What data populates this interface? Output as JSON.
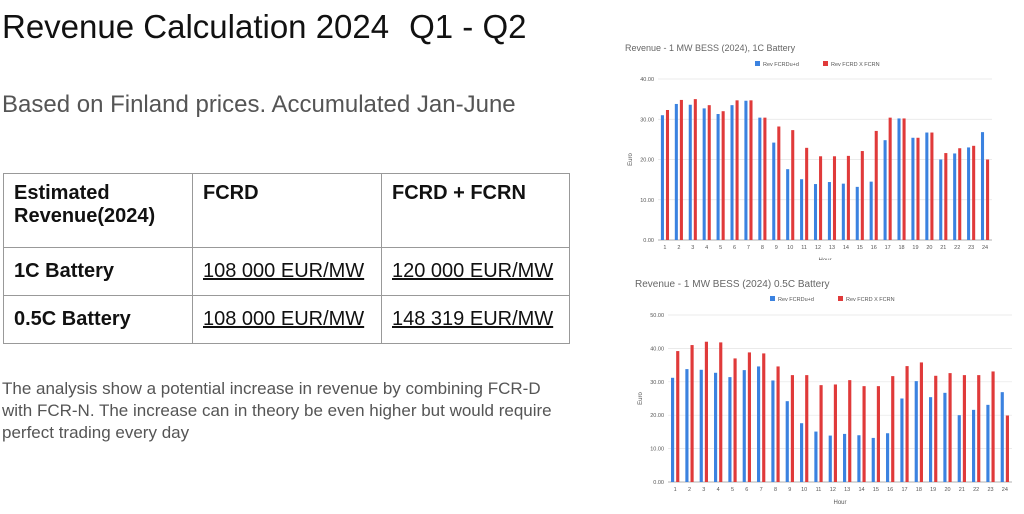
{
  "title": "Revenue Calculation 2024",
  "title_period": "Q1 - Q2",
  "subtitle": "Based on Finland prices. Accumulated Jan-June",
  "table": {
    "headers": [
      "Estimated Revenue(2024)",
      "FCRD",
      "FCRD + FCRN"
    ],
    "rows": [
      [
        "1C Battery",
        "108 000 EUR/MW",
        "120 000 EUR/MW"
      ],
      [
        "0.5C Battery",
        "108 000 EUR/MW",
        "148 319 EUR/MW"
      ]
    ]
  },
  "paragraph": "The analysis show a potential increase in revenue by combining FCR-D with FCR-N. The increase can in theory be even higher but would require perfect trading every day",
  "chart_data": [
    {
      "type": "bar",
      "title": "Revenue - 1 MW BESS (2024), 1C Battery",
      "xlabel": "Hour",
      "ylabel": "Euro",
      "ylim": [
        0,
        40
      ],
      "yticks": [
        "0.00",
        "10.00",
        "20.00",
        "30.00",
        "40.00"
      ],
      "legend": "top",
      "categories": [
        "1",
        "2",
        "3",
        "4",
        "5",
        "6",
        "7",
        "8",
        "9",
        "10",
        "11",
        "12",
        "13",
        "14",
        "15",
        "16",
        "17",
        "18",
        "19",
        "20",
        "21",
        "22",
        "23",
        "24"
      ],
      "series": [
        {
          "name": "Rev FCRDu+d",
          "color": "#3b82e0",
          "values": [
            31,
            33.8,
            33.6,
            32.7,
            31.3,
            33.5,
            34.6,
            30.4,
            24.2,
            17.6,
            15.1,
            13.9,
            14.4,
            14,
            13.2,
            14.5,
            24.8,
            30.2,
            25.4,
            26.7,
            20,
            21.5,
            23,
            26.8
          ]
        },
        {
          "name": "Rev FCRD X FCRN",
          "color": "#e03a3a",
          "values": [
            32.3,
            34.8,
            35,
            33.5,
            32,
            34.7,
            34.7,
            30.4,
            28.2,
            27.3,
            22.9,
            20.8,
            20.8,
            20.9,
            22.1,
            27.1,
            30.4,
            30.2,
            25.4,
            26.7,
            21.6,
            22.8,
            23.4,
            20
          ]
        }
      ]
    },
    {
      "type": "bar",
      "title": "Revenue - 1 MW BESS (2024) 0.5C Battery",
      "xlabel": "Hour",
      "ylabel": "Euro",
      "ylim": [
        0,
        50
      ],
      "yticks": [
        "0.00",
        "10.00",
        "20.00",
        "30.00",
        "40.00",
        "50.00"
      ],
      "legend": "top",
      "categories": [
        "1",
        "2",
        "3",
        "4",
        "5",
        "6",
        "7",
        "8",
        "9",
        "10",
        "11",
        "12",
        "13",
        "14",
        "15",
        "16",
        "17",
        "18",
        "19",
        "20",
        "21",
        "22",
        "23",
        "24"
      ],
      "series": [
        {
          "name": "Rev FCRDu+d",
          "color": "#3b82e0",
          "values": [
            31.2,
            33.8,
            33.6,
            32.7,
            31.4,
            33.5,
            34.6,
            30.4,
            24.2,
            17.6,
            15.1,
            13.9,
            14.4,
            14,
            13.2,
            14.6,
            25,
            30.2,
            25.4,
            26.7,
            20,
            21.6,
            23.1,
            26.9
          ]
        },
        {
          "name": "Rev FCRD X FCRN",
          "color": "#e03a3a",
          "values": [
            39.2,
            41,
            42,
            41.8,
            37,
            38.8,
            38.5,
            34.6,
            32,
            32,
            29,
            29.2,
            30.5,
            28.7,
            28.7,
            31.7,
            34.7,
            35.8,
            31.8,
            32.6,
            32,
            32,
            33.1,
            19.9
          ]
        }
      ]
    }
  ]
}
